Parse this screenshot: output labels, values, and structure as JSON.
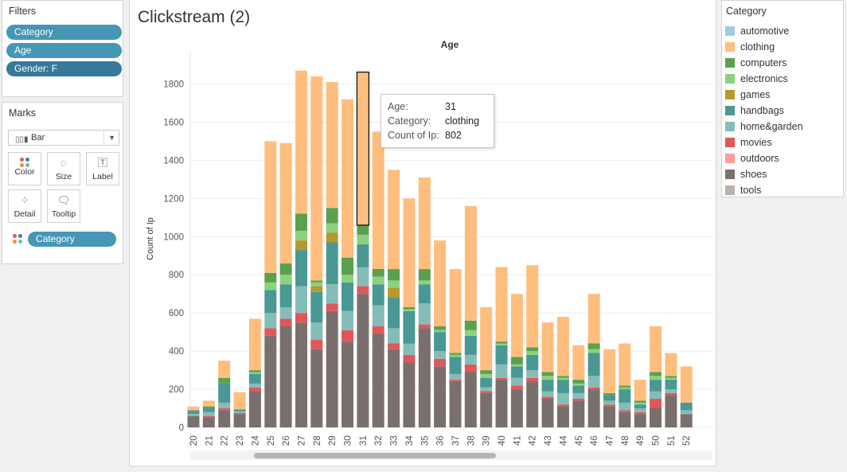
{
  "filters": {
    "title": "Filters",
    "items": [
      "Category",
      "Age",
      "Gender: F"
    ]
  },
  "marks": {
    "title": "Marks",
    "mark_type": "Bar",
    "buttons": [
      "Color",
      "Size",
      "Label",
      "Detail",
      "Tooltip"
    ],
    "color_field": "Category"
  },
  "sheet": {
    "title": "Clickstream (2)"
  },
  "legend": {
    "title": "Category",
    "items": [
      {
        "label": "automotive",
        "color": "#a0cbe8"
      },
      {
        "label": "clothing",
        "color": "#ffbe7d"
      },
      {
        "label": "computers",
        "color": "#59a14f"
      },
      {
        "label": "electronics",
        "color": "#8cd17d"
      },
      {
        "label": "games",
        "color": "#b6992d"
      },
      {
        "label": "handbags",
        "color": "#499894"
      },
      {
        "label": "home&garden",
        "color": "#86bcb6"
      },
      {
        "label": "movies",
        "color": "#e15759"
      },
      {
        "label": "outdoors",
        "color": "#ff9d9a"
      },
      {
        "label": "shoes",
        "color": "#79706e"
      },
      {
        "label": "tools",
        "color": "#bab0ac"
      }
    ]
  },
  "tooltip": {
    "rows": [
      {
        "key": "Age:",
        "value": "31"
      },
      {
        "key": "Category:",
        "value": "clothing"
      },
      {
        "key": "Count of Ip:",
        "value": "802"
      }
    ]
  },
  "chart_data": {
    "type": "bar",
    "stacked": true,
    "title": "Age",
    "ylabel": "Count of Ip",
    "ylim": [
      0,
      1900
    ],
    "yticks": [
      0,
      200,
      400,
      600,
      800,
      1000,
      1200,
      1400,
      1600,
      1800
    ],
    "highlighted_category": "31",
    "categories": [
      "20",
      "21",
      "22",
      "23",
      "24",
      "25",
      "26",
      "27",
      "28",
      "29",
      "30",
      "31",
      "32",
      "33",
      "34",
      "35",
      "36",
      "37",
      "38",
      "39",
      "40",
      "41",
      "42",
      "43",
      "44",
      "45",
      "46",
      "47",
      "48",
      "49",
      "50",
      "51",
      "52"
    ],
    "series": [
      {
        "name": "shoes",
        "values": [
          60,
          50,
          90,
          70,
          190,
          480,
          530,
          550,
          410,
          610,
          450,
          700,
          490,
          410,
          340,
          520,
          320,
          240,
          290,
          180,
          250,
          200,
          240,
          150,
          110,
          140,
          200,
          110,
          80,
          70,
          100,
          170,
          70
        ]
      },
      {
        "name": "movies",
        "values": [
          0,
          10,
          10,
          5,
          20,
          40,
          40,
          50,
          50,
          40,
          60,
          40,
          40,
          30,
          40,
          20,
          40,
          10,
          40,
          10,
          10,
          20,
          20,
          10,
          10,
          10,
          10,
          10,
          10,
          10,
          50,
          10,
          0
        ]
      },
      {
        "name": "home&garden",
        "values": [
          10,
          20,
          30,
          10,
          20,
          80,
          60,
          140,
          90,
          100,
          100,
          100,
          110,
          80,
          60,
          110,
          40,
          30,
          50,
          20,
          70,
          40,
          40,
          30,
          60,
          30,
          60,
          20,
          40,
          20,
          40,
          20,
          20
        ]
      },
      {
        "name": "handbags",
        "values": [
          20,
          20,
          100,
          10,
          50,
          120,
          120,
          190,
          160,
          220,
          150,
          120,
          110,
          160,
          170,
          100,
          100,
          90,
          100,
          50,
          100,
          60,
          80,
          60,
          70,
          40,
          120,
          30,
          70,
          20,
          60,
          50,
          40
        ]
      },
      {
        "name": "games",
        "values": [
          0,
          0,
          0,
          0,
          0,
          0,
          0,
          50,
          30,
          50,
          0,
          0,
          0,
          50,
          0,
          0,
          0,
          0,
          0,
          0,
          0,
          0,
          0,
          0,
          0,
          0,
          0,
          0,
          0,
          0,
          0,
          0,
          0
        ]
      },
      {
        "name": "electronics",
        "values": [
          0,
          0,
          0,
          0,
          10,
          40,
          50,
          50,
          20,
          50,
          40,
          50,
          40,
          40,
          10,
          20,
          10,
          10,
          30,
          20,
          10,
          10,
          20,
          20,
          10,
          10,
          20,
          0,
          10,
          10,
          20,
          10,
          0
        ]
      },
      {
        "name": "computers",
        "values": [
          0,
          10,
          30,
          0,
          10,
          50,
          60,
          90,
          10,
          80,
          90,
          50,
          40,
          60,
          10,
          60,
          20,
          10,
          50,
          20,
          10,
          40,
          20,
          20,
          10,
          20,
          30,
          10,
          10,
          10,
          20,
          10,
          0
        ]
      },
      {
        "name": "clothing",
        "values": [
          20,
          30,
          90,
          90,
          270,
          690,
          630,
          750,
          1070,
          660,
          830,
          802,
          720,
          520,
          570,
          480,
          450,
          440,
          600,
          330,
          390,
          330,
          430,
          260,
          310,
          180,
          260,
          230,
          220,
          110,
          240,
          120,
          190
        ]
      }
    ]
  }
}
